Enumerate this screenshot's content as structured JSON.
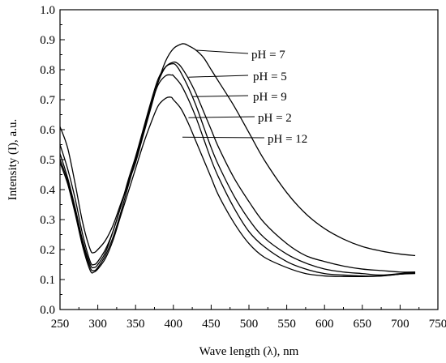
{
  "chart_data": {
    "type": "line",
    "xlabel": "Wave length (λ), nm",
    "ylabel": "Intensity (I), a.u.",
    "xlim": [
      250,
      750
    ],
    "ylim": [
      0.0,
      1.0
    ],
    "x_ticks": [
      250,
      300,
      350,
      400,
      450,
      500,
      550,
      600,
      650,
      700,
      750
    ],
    "y_ticks": [
      0.0,
      0.1,
      0.2,
      0.3,
      0.4,
      0.5,
      0.6,
      0.7,
      0.8,
      0.9,
      1.0
    ],
    "grid": false,
    "legend": "inline labels with leader lines",
    "series": [
      {
        "name": "pH = 7",
        "x": [
          250,
          260,
          270,
          280,
          290,
          295,
          300,
          310,
          320,
          330,
          340,
          350,
          360,
          370,
          380,
          390,
          400,
          410,
          415,
          420,
          430,
          440,
          450,
          460,
          480,
          500,
          520,
          550,
          575,
          600,
          625,
          650,
          675,
          700,
          720
        ],
        "y": [
          0.61,
          0.54,
          0.42,
          0.29,
          0.2,
          0.19,
          0.2,
          0.23,
          0.28,
          0.35,
          0.42,
          0.49,
          0.58,
          0.67,
          0.76,
          0.83,
          0.87,
          0.885,
          0.886,
          0.88,
          0.865,
          0.84,
          0.8,
          0.76,
          0.68,
          0.59,
          0.5,
          0.39,
          0.32,
          0.27,
          0.235,
          0.21,
          0.195,
          0.185,
          0.18
        ]
      },
      {
        "name": "pH = 5",
        "x": [
          250,
          260,
          270,
          280,
          290,
          295,
          300,
          310,
          320,
          330,
          340,
          350,
          360,
          370,
          380,
          390,
          400,
          405,
          410,
          420,
          430,
          440,
          450,
          460,
          480,
          500,
          520,
          550,
          575,
          600,
          625,
          650,
          675,
          700,
          720
        ],
        "y": [
          0.55,
          0.47,
          0.37,
          0.25,
          0.16,
          0.15,
          0.16,
          0.2,
          0.26,
          0.34,
          0.42,
          0.5,
          0.59,
          0.68,
          0.76,
          0.81,
          0.825,
          0.822,
          0.81,
          0.77,
          0.72,
          0.66,
          0.6,
          0.54,
          0.44,
          0.36,
          0.29,
          0.22,
          0.18,
          0.16,
          0.145,
          0.135,
          0.13,
          0.125,
          0.125
        ]
      },
      {
        "name": "pH = 9",
        "x": [
          250,
          260,
          270,
          280,
          290,
          295,
          300,
          310,
          320,
          330,
          340,
          350,
          360,
          370,
          380,
          390,
          400,
          405,
          410,
          420,
          430,
          440,
          450,
          460,
          480,
          500,
          520,
          550,
          575,
          600,
          625,
          650,
          675,
          700,
          720
        ],
        "y": [
          0.52,
          0.44,
          0.34,
          0.23,
          0.15,
          0.14,
          0.15,
          0.19,
          0.26,
          0.34,
          0.43,
          0.51,
          0.6,
          0.69,
          0.77,
          0.81,
          0.82,
          0.81,
          0.79,
          0.74,
          0.68,
          0.61,
          0.54,
          0.48,
          0.38,
          0.3,
          0.24,
          0.185,
          0.155,
          0.135,
          0.125,
          0.12,
          0.115,
          0.12,
          0.125
        ]
      },
      {
        "name": "pH = 2",
        "x": [
          250,
          260,
          270,
          280,
          290,
          295,
          300,
          310,
          320,
          330,
          340,
          350,
          360,
          370,
          380,
          390,
          398,
          400,
          410,
          420,
          430,
          440,
          450,
          460,
          480,
          500,
          520,
          550,
          575,
          600,
          625,
          650,
          675,
          700,
          720
        ],
        "y": [
          0.5,
          0.43,
          0.33,
          0.22,
          0.14,
          0.13,
          0.14,
          0.18,
          0.24,
          0.32,
          0.41,
          0.5,
          0.59,
          0.68,
          0.75,
          0.78,
          0.782,
          0.78,
          0.75,
          0.7,
          0.64,
          0.57,
          0.5,
          0.44,
          0.34,
          0.26,
          0.21,
          0.16,
          0.135,
          0.12,
          0.115,
          0.112,
          0.112,
          0.118,
          0.122
        ]
      },
      {
        "name": "pH = 12",
        "x": [
          250,
          260,
          270,
          280,
          290,
          295,
          300,
          310,
          320,
          330,
          340,
          350,
          360,
          370,
          380,
          390,
          397,
          400,
          410,
          420,
          430,
          440,
          450,
          460,
          480,
          500,
          520,
          550,
          575,
          600,
          625,
          650,
          675,
          700,
          720
        ],
        "y": [
          0.49,
          0.42,
          0.32,
          0.21,
          0.13,
          0.125,
          0.135,
          0.17,
          0.23,
          0.31,
          0.39,
          0.47,
          0.55,
          0.62,
          0.68,
          0.705,
          0.708,
          0.7,
          0.67,
          0.62,
          0.56,
          0.5,
          0.44,
          0.38,
          0.29,
          0.22,
          0.175,
          0.14,
          0.12,
          0.112,
          0.11,
          0.11,
          0.112,
          0.118,
          0.12
        ]
      }
    ],
    "annotations": [
      {
        "text": "pH = 7",
        "series": "pH = 7",
        "leader_from_x": 430,
        "leader_from_y": 0.865
      },
      {
        "text": "pH = 5",
        "series": "pH = 5",
        "leader_from_x": 420,
        "leader_from_y": 0.775
      },
      {
        "text": "pH = 9",
        "series": "pH = 9",
        "leader_from_x": 425,
        "leader_from_y": 0.71
      },
      {
        "text": "pH = 2",
        "series": "pH = 2",
        "leader_from_x": 420,
        "leader_from_y": 0.64
      },
      {
        "text": "pH = 12",
        "series": "pH = 12",
        "leader_from_x": 412,
        "leader_from_y": 0.575
      }
    ],
    "line_color": "#000000"
  }
}
